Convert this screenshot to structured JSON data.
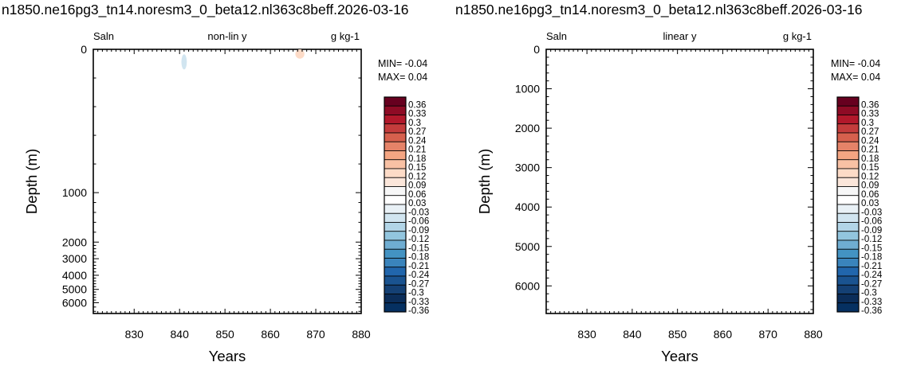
{
  "chart_data": [
    {
      "type": "heatmap",
      "title": "n1850.ne16pg3_tn14.noresm3_0_beta12.nl363c8beff.2026-03-16",
      "left_label": "Saln",
      "center_label": "non-lin y",
      "right_label": "g kg-1",
      "xlabel": "Years",
      "ylabel": "Depth (m)",
      "xlim": [
        821,
        880
      ],
      "x_ticks": [
        830,
        840,
        850,
        860,
        870,
        880
      ],
      "ylim": [
        0,
        6500
      ],
      "y_scale": "nonlinear",
      "y_tick_labels": [
        "0",
        "1000",
        "2000",
        "3000",
        "4000",
        "5000",
        "6000"
      ],
      "y_axis_ticks": [
        {
          "depth": 0,
          "label": "0"
        },
        {
          "depth": 1000,
          "label": "1000"
        },
        {
          "depth": 2000,
          "label": "2000"
        },
        {
          "depth": 3000,
          "label": "3000"
        },
        {
          "depth": 4000,
          "label": "4000"
        },
        {
          "depth": 5000,
          "label": "5000"
        },
        {
          "depth": 6000,
          "label": "6000"
        }
      ],
      "y_scale_map": [
        [
          0,
          0
        ],
        [
          1000,
          0.5425
        ],
        [
          2000,
          0.7297
        ],
        [
          3000,
          0.7926
        ],
        [
          4000,
          0.8553
        ],
        [
          5000,
          0.9088
        ],
        [
          6000,
          0.9591
        ],
        [
          6500,
          1.0
        ]
      ],
      "min_text": "MIN= -0.04",
      "max_text": "MAX=  0.04",
      "features": [
        {
          "color": "#d1e5f0",
          "year_center": 841,
          "year_halfwidth": 0.6,
          "depth_top": 35,
          "depth_bottom": 140
        },
        {
          "color": "#fddbc7",
          "year_center": 866.5,
          "year_halfwidth": 1.0,
          "depth_top": 0,
          "depth_bottom": 65
        }
      ],
      "grid": false
    },
    {
      "type": "heatmap",
      "title": "n1850.ne16pg3_tn14.noresm3_0_beta12.nl363c8beff.2026-03-16",
      "left_label": "Saln",
      "center_label": "linear y",
      "right_label": "g kg-1",
      "xlabel": "Years",
      "ylabel": "Depth (m)",
      "xlim": [
        821,
        880
      ],
      "x_ticks": [
        830,
        840,
        850,
        860,
        870,
        880
      ],
      "ylim": [
        0,
        6700
      ],
      "y_scale": "linear",
      "y_axis_ticks": [
        {
          "depth": 0,
          "label": "0"
        },
        {
          "depth": 1000,
          "label": "1000"
        },
        {
          "depth": 2000,
          "label": "2000"
        },
        {
          "depth": 3000,
          "label": "3000"
        },
        {
          "depth": 4000,
          "label": "4000"
        },
        {
          "depth": 5000,
          "label": "5000"
        },
        {
          "depth": 6000,
          "label": "6000"
        }
      ],
      "min_text": "MIN= -0.04",
      "max_text": "MAX=  0.04",
      "features": [],
      "grid": false
    }
  ],
  "colorbar": {
    "labels": [
      "0.36",
      "0.33",
      "0.3",
      "0.27",
      "0.24",
      "0.21",
      "0.18",
      "0.15",
      "0.12",
      "0.09",
      "0.06",
      "0.03",
      "-0.03",
      "-0.06",
      "-0.09",
      "-0.12",
      "-0.15",
      "-0.18",
      "-0.21",
      "-0.24",
      "-0.27",
      "-0.3",
      "-0.33",
      "-0.36"
    ],
    "colors": [
      "#67001f",
      "#8e0b25",
      "#b2182b",
      "#c43c3c",
      "#d6604d",
      "#e58368",
      "#f4a582",
      "#f8c1a4",
      "#fddbc7",
      "#fbe6da",
      "#f7f7f7",
      "#ffffff",
      "#e9f1f6",
      "#d1e5f0",
      "#b2d5e7",
      "#92c5de",
      "#6fadd2",
      "#4393c3",
      "#3a84bc",
      "#2166ac",
      "#1a5390",
      "#144074",
      "#0b2d59",
      "#053061"
    ]
  }
}
